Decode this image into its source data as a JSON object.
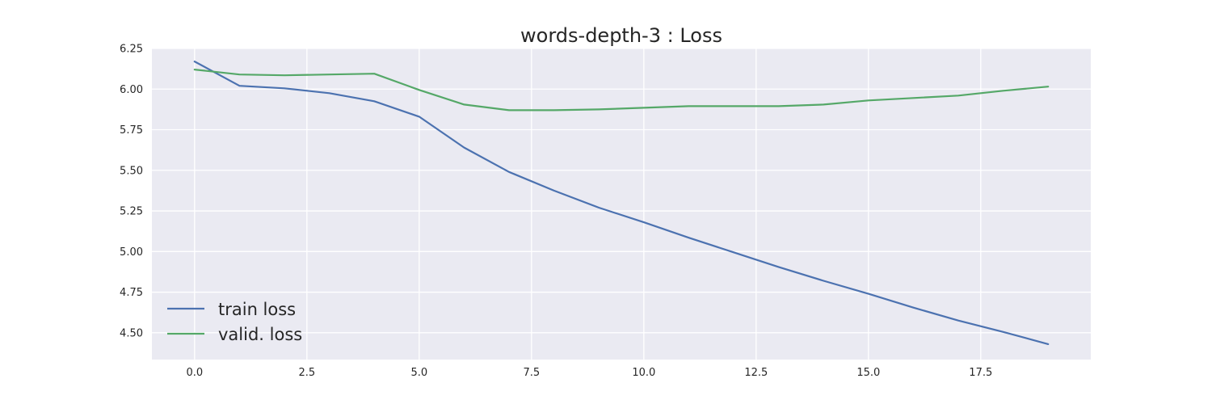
{
  "chart_data": {
    "type": "line",
    "title": "words-depth-3 : Loss",
    "xlabel": "",
    "ylabel": "",
    "xlim": [
      -0.95,
      19.95
    ],
    "ylim": [
      4.335,
      6.25
    ],
    "xticks": [
      0.0,
      2.5,
      5.0,
      7.5,
      10.0,
      12.5,
      15.0,
      17.5
    ],
    "xtick_labels": [
      "0.0",
      "2.5",
      "5.0",
      "7.5",
      "10.0",
      "12.5",
      "15.0",
      "17.5"
    ],
    "yticks": [
      4.5,
      4.75,
      5.0,
      5.25,
      5.5,
      5.75,
      6.0,
      6.25
    ],
    "ytick_labels": [
      "4.50",
      "4.75",
      "5.00",
      "5.25",
      "5.50",
      "5.75",
      "6.00",
      "6.25"
    ],
    "grid": true,
    "legend_position": "lower-left",
    "x": [
      0,
      1,
      2,
      3,
      4,
      5,
      6,
      7,
      8,
      9,
      10,
      11,
      12,
      13,
      14,
      15,
      16,
      17,
      18,
      19
    ],
    "series": [
      {
        "name": "train loss",
        "color": "#4c72b0",
        "values": [
          6.17,
          6.02,
          6.005,
          5.975,
          5.925,
          5.83,
          5.64,
          5.49,
          5.375,
          5.27,
          5.18,
          5.085,
          4.995,
          4.905,
          4.82,
          4.74,
          4.655,
          4.575,
          4.505,
          4.43
        ]
      },
      {
        "name": "valid. loss",
        "color": "#55a868",
        "values": [
          6.12,
          6.09,
          6.085,
          6.09,
          6.095,
          5.995,
          5.905,
          5.87,
          5.87,
          5.875,
          5.885,
          5.895,
          5.895,
          5.895,
          5.905,
          5.93,
          5.945,
          5.96,
          5.99,
          6.015
        ]
      }
    ]
  }
}
